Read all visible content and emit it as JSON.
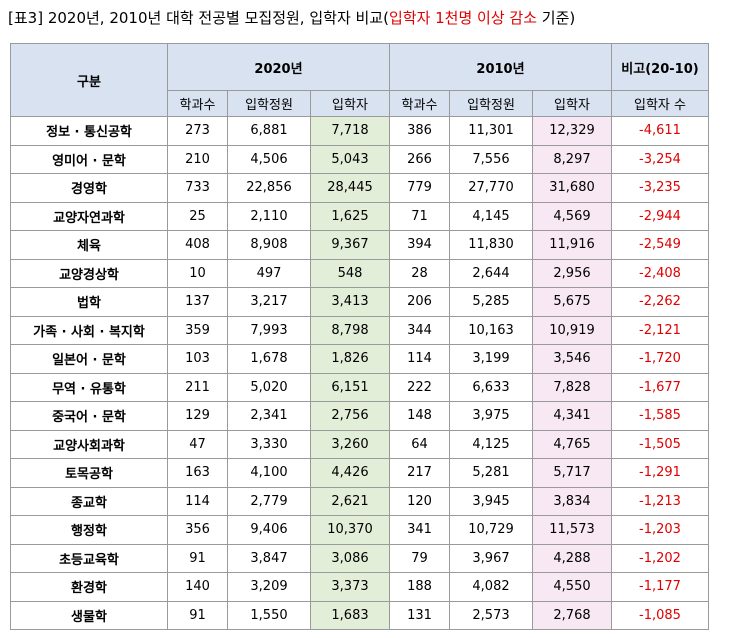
{
  "title": {
    "prefix": "[표3] 2020년, 2010년 대학 전공별 모집정원, 입학자 비교(",
    "highlight": "입학자 1천명 이상 감소",
    "suffix": " 기준)"
  },
  "table": {
    "header_group": "구분",
    "year_2020": "2020년",
    "year_2010": "2010년",
    "compare": "비고(20-10)",
    "cols": [
      "학과수",
      "입학정원",
      "입학자",
      "학과수",
      "입학정원",
      "입학자",
      "입학자 수"
    ],
    "rows": [
      [
        "정보 · 통신공학",
        "273",
        "6,881",
        "7,718",
        "386",
        "11,301",
        "12,329",
        "-4,611"
      ],
      [
        "영미어 · 문학",
        "210",
        "4,506",
        "5,043",
        "266",
        "7,556",
        "8,297",
        "-3,254"
      ],
      [
        "경영학",
        "733",
        "22,856",
        "28,445",
        "779",
        "27,770",
        "31,680",
        "-3,235"
      ],
      [
        "교양자연과학",
        "25",
        "2,110",
        "1,625",
        "71",
        "4,145",
        "4,569",
        "-2,944"
      ],
      [
        "체육",
        "408",
        "8,908",
        "9,367",
        "394",
        "11,830",
        "11,916",
        "-2,549"
      ],
      [
        "교양경상학",
        "10",
        "497",
        "548",
        "28",
        "2,644",
        "2,956",
        "-2,408"
      ],
      [
        "법학",
        "137",
        "3,217",
        "3,413",
        "206",
        "5,285",
        "5,675",
        "-2,262"
      ],
      [
        "가족 · 사회 · 복지학",
        "359",
        "7,993",
        "8,798",
        "344",
        "10,163",
        "10,919",
        "-2,121"
      ],
      [
        "일본어 · 문학",
        "103",
        "1,678",
        "1,826",
        "114",
        "3,199",
        "3,546",
        "-1,720"
      ],
      [
        "무역 · 유통학",
        "211",
        "5,020",
        "6,151",
        "222",
        "6,633",
        "7,828",
        "-1,677"
      ],
      [
        "중국어 · 문학",
        "129",
        "2,341",
        "2,756",
        "148",
        "3,975",
        "4,341",
        "-1,585"
      ],
      [
        "교양사회과학",
        "47",
        "3,330",
        "3,260",
        "64",
        "4,125",
        "4,765",
        "-1,505"
      ],
      [
        "토목공학",
        "163",
        "4,100",
        "4,426",
        "217",
        "5,281",
        "5,717",
        "-1,291"
      ],
      [
        "종교학",
        "114",
        "2,779",
        "2,621",
        "120",
        "3,945",
        "3,834",
        "-1,213"
      ],
      [
        "행정학",
        "356",
        "9,406",
        "10,370",
        "341",
        "10,729",
        "11,573",
        "-1,203"
      ],
      [
        "초등교육학",
        "91",
        "3,847",
        "3,086",
        "79",
        "3,967",
        "4,288",
        "-1,202"
      ],
      [
        "환경학",
        "140",
        "3,209",
        "3,373",
        "188",
        "4,082",
        "4,550",
        "-1,177"
      ],
      [
        "생물학",
        "91",
        "1,550",
        "1,683",
        "131",
        "2,573",
        "2,768",
        "-1,085"
      ]
    ]
  },
  "colors": {
    "header_bg": "#d9e2f0",
    "enroll_2020_bg": "#e3eed9",
    "enroll_2010_bg": "#f7e8f3",
    "negative": "#e00000"
  }
}
